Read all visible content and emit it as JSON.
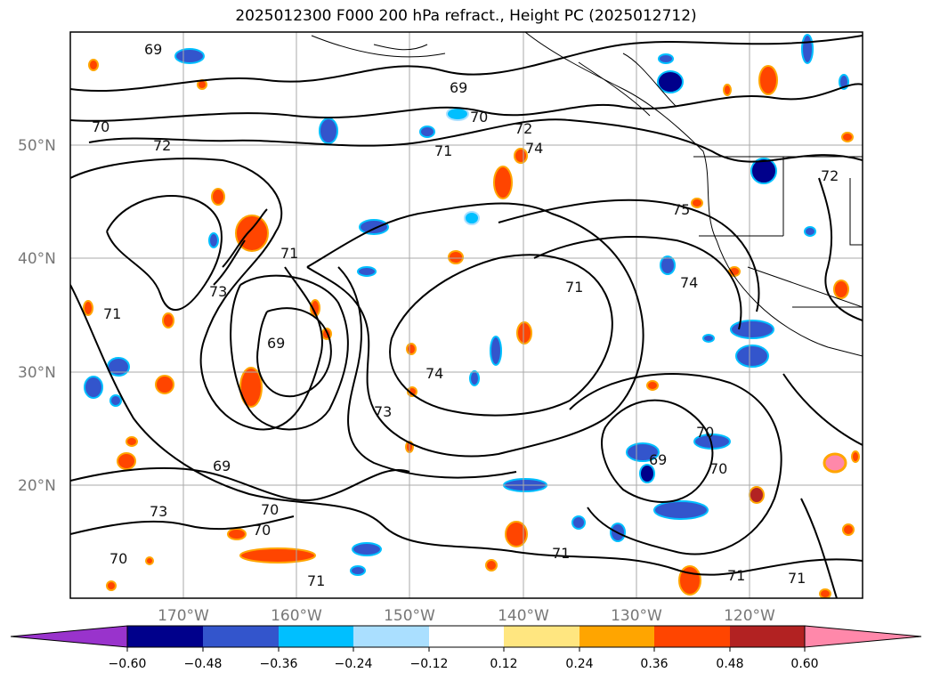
{
  "title": "2025012300 F000 200 hPa refract., Height PC (2025012712)",
  "map": {
    "lat_labels": [
      "50°N",
      "40°N",
      "30°N",
      "20°N"
    ],
    "lon_labels": [
      "170°W",
      "160°W",
      "150°W",
      "140°W",
      "130°W",
      "120°W"
    ],
    "contour_labels": [
      "69",
      "69",
      "70",
      "71",
      "72",
      "74",
      "72",
      "75",
      "74",
      "71",
      "71",
      "71",
      "73",
      "69",
      "74",
      "73",
      "69",
      "70",
      "70",
      "69",
      "70",
      "70",
      "70",
      "71",
      "71",
      "71",
      "71",
      "72",
      "70",
      "73"
    ]
  },
  "colorbar": {
    "ticks": [
      "−0.60",
      "−0.48",
      "−0.36",
      "−0.24",
      "−0.12",
      "0.12",
      "0.24",
      "0.36",
      "0.48",
      "0.60"
    ],
    "colors": [
      "#9933cc",
      "#00008b",
      "#3355cc",
      "#00bfff",
      "#aadfff",
      "#ffffff",
      "#ffe680",
      "#ffa500",
      "#ff4500",
      "#b22222",
      "#ff88aa",
      "#ff88aa"
    ]
  }
}
